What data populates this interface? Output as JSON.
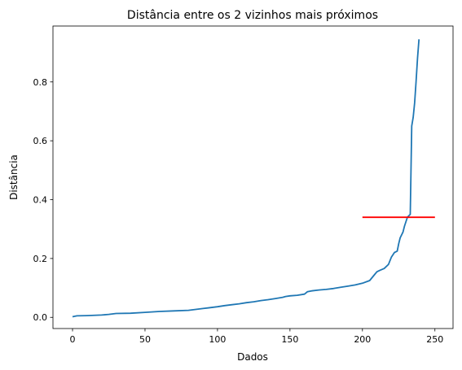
{
  "chart_data": {
    "type": "line",
    "title": "Distância entre os 2 vizinhos mais próximos",
    "xlabel": "Dados",
    "ylabel": "Distância",
    "xlim": [
      -13.5,
      262.5
    ],
    "ylim": [
      -0.038,
      0.99
    ],
    "xticks": [
      0,
      50,
      100,
      150,
      200,
      250
    ],
    "xtick_labels": [
      "0",
      "50",
      "100",
      "150",
      "200",
      "250"
    ],
    "yticks": [
      0.0,
      0.2,
      0.4,
      0.6,
      0.8
    ],
    "ytick_labels": [
      "0.0",
      "0.2",
      "0.4",
      "0.6",
      "0.8"
    ],
    "grid": false,
    "series": [
      {
        "color": "#1f77b4",
        "x": [
          0,
          3,
          10,
          20,
          25,
          30,
          40,
          50,
          60,
          70,
          80,
          85,
          90,
          95,
          100,
          105,
          110,
          115,
          120,
          125,
          130,
          135,
          140,
          145,
          147,
          150,
          155,
          160,
          162,
          165,
          170,
          175,
          180,
          185,
          190,
          195,
          200,
          205,
          208,
          210,
          212,
          215,
          218,
          220,
          222,
          224,
          225,
          226,
          228,
          229,
          230,
          231,
          232,
          233,
          234,
          235,
          236,
          237,
          238,
          239
        ],
        "y": [
          0.002,
          0.005,
          0.006,
          0.008,
          0.01,
          0.013,
          0.014,
          0.017,
          0.02,
          0.022,
          0.024,
          0.027,
          0.03,
          0.033,
          0.036,
          0.04,
          0.043,
          0.046,
          0.05,
          0.053,
          0.057,
          0.06,
          0.064,
          0.068,
          0.071,
          0.073,
          0.075,
          0.079,
          0.087,
          0.09,
          0.093,
          0.095,
          0.098,
          0.102,
          0.106,
          0.11,
          0.116,
          0.125,
          0.143,
          0.155,
          0.16,
          0.166,
          0.18,
          0.205,
          0.22,
          0.225,
          0.25,
          0.27,
          0.29,
          0.31,
          0.325,
          0.34,
          0.345,
          0.35,
          0.65,
          0.68,
          0.73,
          0.8,
          0.88,
          0.945
        ]
      },
      {
        "color": "#ff0000",
        "x": [
          200,
          250
        ],
        "y": [
          0.34,
          0.34
        ]
      }
    ]
  }
}
